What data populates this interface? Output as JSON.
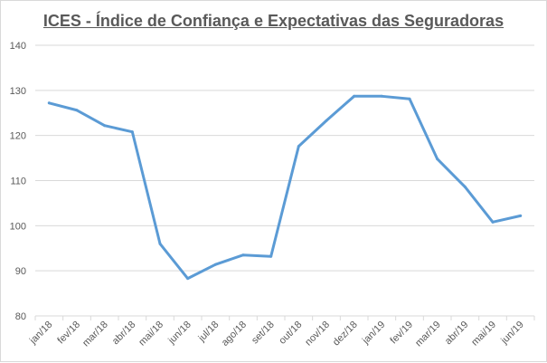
{
  "chart_data": {
    "type": "line",
    "title": "ICES - Índice de Confiança e Expectativas das Seguradoras",
    "categories": [
      "jan/18",
      "fev/18",
      "mar/18",
      "abr/18",
      "mai/18",
      "jun/18",
      "jul/18",
      "ago/18",
      "set/18",
      "out/18",
      "nov/18",
      "dez/18",
      "jan/19",
      "fev/19",
      "mar/19",
      "abr/19",
      "mai/19",
      "jun/19"
    ],
    "series": [
      {
        "values": [
          127.2,
          125.6,
          122.2,
          120.8,
          96.0,
          88.3,
          91.4,
          93.5,
          93.2,
          117.6,
          123.3,
          128.7,
          128.7,
          128.1,
          114.8,
          108.6,
          100.8,
          102.2
        ],
        "color": "#5b9bd5"
      }
    ],
    "ylim": [
      80,
      140
    ],
    "yticks": [
      80,
      90,
      100,
      110,
      120,
      130,
      140
    ],
    "grid": true,
    "legend": "none"
  }
}
